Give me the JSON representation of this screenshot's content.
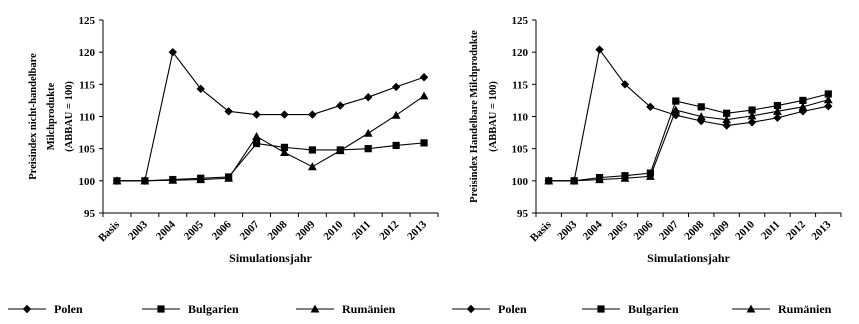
{
  "chart_data": [
    {
      "type": "line",
      "title": "",
      "xlabel": "Simulationsjahr",
      "ylabel": [
        "Preisindex nicht-handelbare",
        "Milchprodukte",
        "(ABBAU = 100)"
      ],
      "categories": [
        "Basis",
        "2003",
        "2004",
        "2005",
        "2006",
        "2007",
        "2008",
        "2009",
        "2010",
        "2011",
        "2012",
        "2013"
      ],
      "ylim": [
        95,
        125
      ],
      "yticks": [
        95,
        100,
        105,
        110,
        115,
        120,
        125
      ],
      "grid": false,
      "legend": "bottom",
      "series": [
        {
          "name": "Polen",
          "marker": "diamond",
          "values": [
            100,
            100,
            120,
            114.3,
            110.8,
            110.3,
            110.3,
            110.3,
            111.7,
            113,
            114.6,
            116.1
          ]
        },
        {
          "name": "Bulgarien",
          "marker": "square",
          "values": [
            100,
            100,
            100.2,
            100.4,
            100.6,
            105.8,
            105.2,
            104.8,
            104.8,
            105,
            105.5,
            105.9
          ]
        },
        {
          "name": "Rumänien",
          "marker": "triangle",
          "values": [
            100,
            100,
            100.1,
            100.2,
            100.4,
            106.9,
            104.4,
            102.2,
            104.7,
            107.4,
            110.2,
            113.2
          ]
        }
      ]
    },
    {
      "type": "line",
      "title": "",
      "xlabel": "Simulationsjahr",
      "ylabel": [
        "Preisindex Handelbare Milchprodukte",
        "(ABBAU = 100)"
      ],
      "categories": [
        "Basis",
        "2003",
        "2004",
        "2005",
        "2006",
        "2007",
        "2008",
        "2009",
        "2010",
        "2011",
        "2012",
        "2013"
      ],
      "ylim": [
        95,
        125
      ],
      "yticks": [
        95,
        100,
        105,
        110,
        115,
        120,
        125
      ],
      "grid": false,
      "legend": "bottom",
      "series": [
        {
          "name": "Polen",
          "marker": "diamond",
          "values": [
            100,
            100,
            120.4,
            115,
            111.5,
            110.2,
            109.3,
            108.6,
            109.1,
            109.8,
            110.8,
            111.6
          ]
        },
        {
          "name": "Bulgarien",
          "marker": "square",
          "values": [
            100,
            100,
            100.5,
            100.8,
            101.2,
            112.4,
            111.5,
            110.5,
            111,
            111.7,
            112.5,
            113.5
          ]
        },
        {
          "name": "Rumänien",
          "marker": "triangle",
          "values": [
            100,
            100,
            100.2,
            100.4,
            100.7,
            111,
            110,
            109.5,
            110.1,
            110.8,
            111.5,
            112.6
          ]
        }
      ]
    }
  ],
  "legend_items": [
    "Polen",
    "Bulgarien",
    "Rumänien",
    "Polen",
    "Bulgarien",
    "Rumänien"
  ]
}
